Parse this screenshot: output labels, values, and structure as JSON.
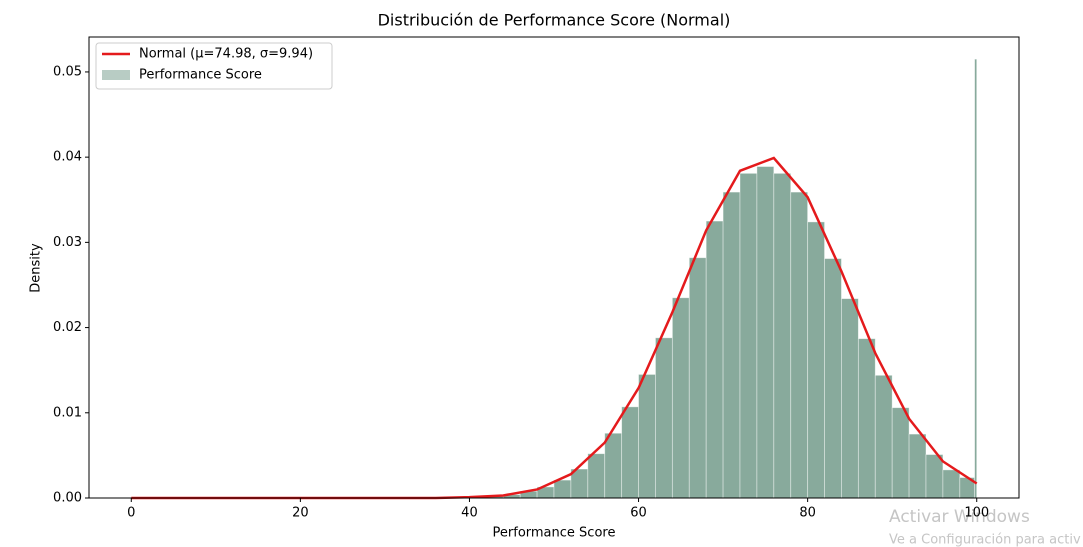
{
  "chart_data": {
    "type": "histogram",
    "title": "Distribución de Performance Score (Normal)",
    "x_label": "Performance Score",
    "y_label": "Density",
    "xlim": [
      -5,
      105
    ],
    "xticks": [
      0,
      20,
      40,
      60,
      80,
      100
    ],
    "ylim": [
      0,
      0.0541
    ],
    "yticks": [
      {
        "value": 0,
        "label": "0.00"
      },
      {
        "value": 0.01,
        "label": "0.01"
      },
      {
        "value": 0.02,
        "label": "0.02"
      },
      {
        "value": 0.03,
        "label": "0.03"
      },
      {
        "value": 0.04,
        "label": "0.04"
      },
      {
        "value": 0.05,
        "label": "0.05"
      }
    ],
    "bins": [
      40,
      42,
      44,
      46,
      48,
      50,
      52,
      54,
      56,
      58,
      60,
      62,
      64,
      66,
      68,
      70,
      72,
      74,
      76,
      78,
      80,
      82,
      84,
      86,
      88,
      90,
      92,
      94,
      96,
      98,
      99.75,
      100
    ],
    "counts": [
      0.0001,
      0.0002,
      0.0004,
      0.0008,
      0.0013,
      0.0021,
      0.0034,
      0.0052,
      0.0076,
      0.0107,
      0.0145,
      0.0188,
      0.0235,
      0.0282,
      0.0325,
      0.0359,
      0.0381,
      0.0389,
      0.0381,
      0.0359,
      0.0324,
      0.0281,
      0.0234,
      0.0187,
      0.0144,
      0.0106,
      0.0075,
      0.0051,
      0.0033,
      0.0024,
      0.0515
    ],
    "hist_name": "Performance Score",
    "hist_color": "#88aa9c",
    "curve": {
      "name": "Normal (μ=74.98, σ=9.94)",
      "color": "#e41a1c",
      "x": [
        0,
        4,
        8,
        12,
        16,
        20,
        24,
        28,
        32,
        36,
        40,
        44,
        48,
        52,
        56,
        60,
        64,
        68,
        72,
        76,
        80,
        84,
        88,
        92,
        96,
        100
      ],
      "values": [
        0,
        0,
        0,
        0,
        0,
        0,
        0,
        0,
        0,
        0,
        0.0001,
        0.0003,
        0.001,
        0.0028,
        0.0065,
        0.0129,
        0.0218,
        0.0314,
        0.0384,
        0.0399,
        0.0353,
        0.0266,
        0.017,
        0.0093,
        0.0043,
        0.0017
      ]
    },
    "legend": "upper left"
  },
  "watermark": {
    "title": "Activar Windows",
    "subtitle": "Ve a Configuración para activ"
  }
}
